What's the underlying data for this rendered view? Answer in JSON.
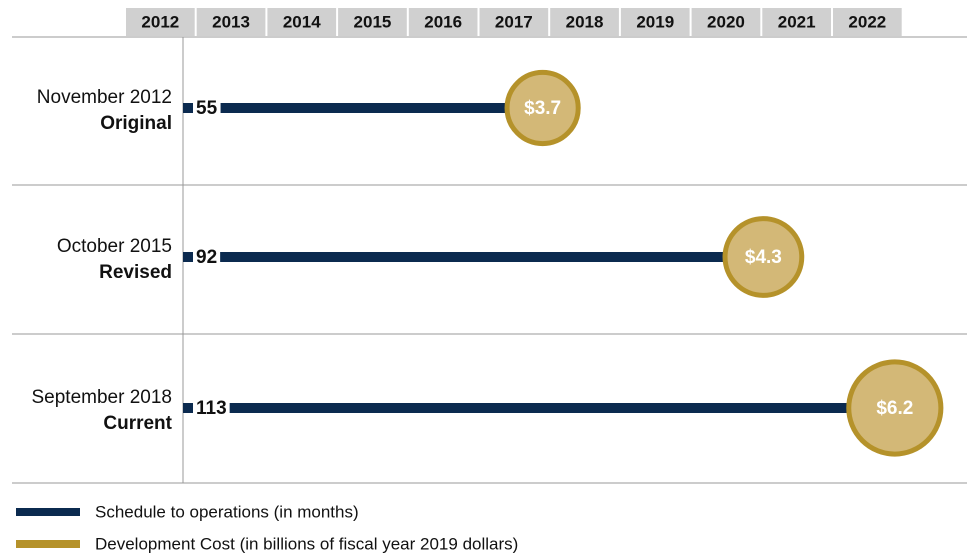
{
  "chart_data": {
    "type": "bar",
    "xticks": [
      2012,
      2013,
      2014,
      2015,
      2016,
      2017,
      2018,
      2019,
      2020,
      2021,
      2022
    ],
    "categories": [
      "November 2012",
      "October 2015",
      "September 2018"
    ],
    "category_labels": [
      "Original",
      "Revised",
      "Current"
    ],
    "series": [
      {
        "name": "Schedule to operations (in months)",
        "color": "#0b2a4f",
        "values": [
          55,
          92,
          113
        ]
      },
      {
        "name": "Development Cost (in billions of fiscal year 2019 dollars)",
        "color": "#b5922a",
        "values": [
          3.7,
          4.3,
          6.2
        ],
        "value_labels": [
          "$3.7",
          "$4.3",
          "$6.2"
        ]
      }
    ]
  }
}
